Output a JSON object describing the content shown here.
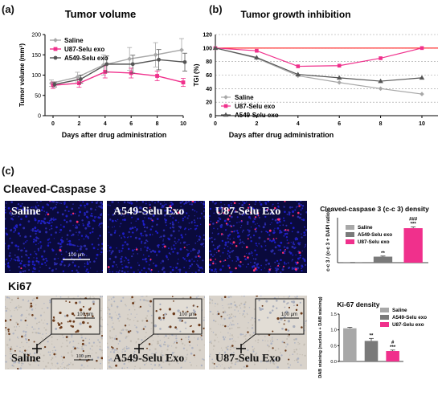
{
  "panel_labels": {
    "a": "(a)",
    "b": "(b)",
    "c": "(c)"
  },
  "section_titles": {
    "caspase": "Cleaved-Caspase 3",
    "ki67": "Ki67"
  },
  "micro_caspase": {
    "images": [
      {
        "label": "Saline",
        "signal": 0.08
      },
      {
        "label": "A549-Selu Exo",
        "signal": 0.15
      },
      {
        "label": "U87-Selu Exo",
        "signal": 0.7
      }
    ],
    "scale_bar": "100 µm"
  },
  "micro_ki67": {
    "images": [
      {
        "label": "Saline",
        "positivity": 0.8
      },
      {
        "label": "A549-Selu Exo",
        "positivity": 0.5
      },
      {
        "label": "U87-Selu Exo",
        "positivity": 0.3
      }
    ],
    "scale_bar": "100 µm",
    "inset_scale": "100 µm"
  },
  "colors": {
    "saline_line": "#a8a8a8",
    "u87": "#f0308c",
    "a549": "#555555",
    "bar_saline": "#a8a8a8",
    "bar_a549": "#7a7a7a",
    "bar_u87": "#f0308c",
    "tgi_ref": "#ff0000"
  },
  "chart_data": [
    {
      "id": "tumor_volume",
      "type": "line",
      "title": "Tumor volume",
      "xlabel": "Days after drug administration",
      "ylabel": "Tumor volume (mm³)",
      "x": [
        0,
        2,
        4,
        6,
        8,
        10
      ],
      "xticks": [
        "0",
        "2",
        "4",
        "6",
        "8",
        "10"
      ],
      "ylim": [
        0,
        200
      ],
      "yticks": [
        "0",
        "50",
        "100",
        "150",
        "200"
      ],
      "grid": false,
      "legend": "top-left",
      "series": [
        {
          "name": "Saline",
          "values": [
            80,
            95,
            125,
            140,
            150,
            162
          ],
          "errors": [
            8,
            12,
            25,
            28,
            30,
            28
          ]
        },
        {
          "name": "U87-Selu exo",
          "values": [
            75,
            80,
            108,
            105,
            98,
            82
          ],
          "errors": [
            8,
            10,
            15,
            12,
            12,
            10
          ]
        },
        {
          "name": "A549-Selu exo",
          "values": [
            77,
            90,
            127,
            127,
            138,
            132
          ],
          "errors": [
            6,
            10,
            20,
            22,
            25,
            22
          ]
        }
      ]
    },
    {
      "id": "tgi",
      "type": "line",
      "title": "Tumor growth inhibition",
      "xlabel": "Days after drug administration",
      "ylabel": "TGI  (%)",
      "x": [
        0,
        2,
        4,
        6,
        8,
        10
      ],
      "xticks": [
        "0",
        "2",
        "4",
        "6",
        "8",
        "10"
      ],
      "ylim": [
        0,
        120
      ],
      "yticks": [
        "0",
        "20",
        "40",
        "60",
        "80",
        "100",
        "120"
      ],
      "grid": true,
      "legend": "bottom-left",
      "reference_value": 100,
      "series": [
        {
          "name": "Saline",
          "values": [
            100,
            85,
            59,
            49,
            40,
            32
          ]
        },
        {
          "name": "U87-Selu exo",
          "values": [
            100,
            96,
            73,
            74,
            85,
            100
          ]
        },
        {
          "name": "A549-Selu exo",
          "values": [
            100,
            86,
            61,
            56,
            51,
            56
          ]
        }
      ]
    },
    {
      "id": "cc3_density",
      "type": "bar",
      "title": "Cleaved-caspase 3 (c-c 3) density",
      "ylabel": "c-c 3 / (c-c 3 + DAPI ratio)",
      "categories": [
        "Saline",
        "A549-Selu exo",
        "U87-Selu exo"
      ],
      "values": [
        0.3,
        20,
        115
      ],
      "errors": [
        0.2,
        2,
        4
      ],
      "ylim": [
        0,
        150
      ],
      "significance": [
        "",
        "**",
        "***"
      ],
      "significance_extra": [
        "",
        "",
        "###"
      ],
      "legend": "top-left"
    },
    {
      "id": "ki67_density",
      "type": "bar",
      "title": "Ki-67 density",
      "ylabel": "DAB staining (nucleus + DAB staining)",
      "categories": [
        "Saline",
        "A549-Selu exo",
        "U87-Selu exo"
      ],
      "values": [
        1.05,
        0.65,
        0.33
      ],
      "errors": [
        0.03,
        0.08,
        0.03
      ],
      "ylim": [
        0,
        1.5
      ],
      "yticks": [
        "0.0",
        "0.5",
        "1.0",
        "1.5"
      ],
      "significance": [
        "",
        "**",
        "***"
      ],
      "significance_extra": [
        "",
        "",
        "#"
      ],
      "legend": "top-right"
    }
  ]
}
